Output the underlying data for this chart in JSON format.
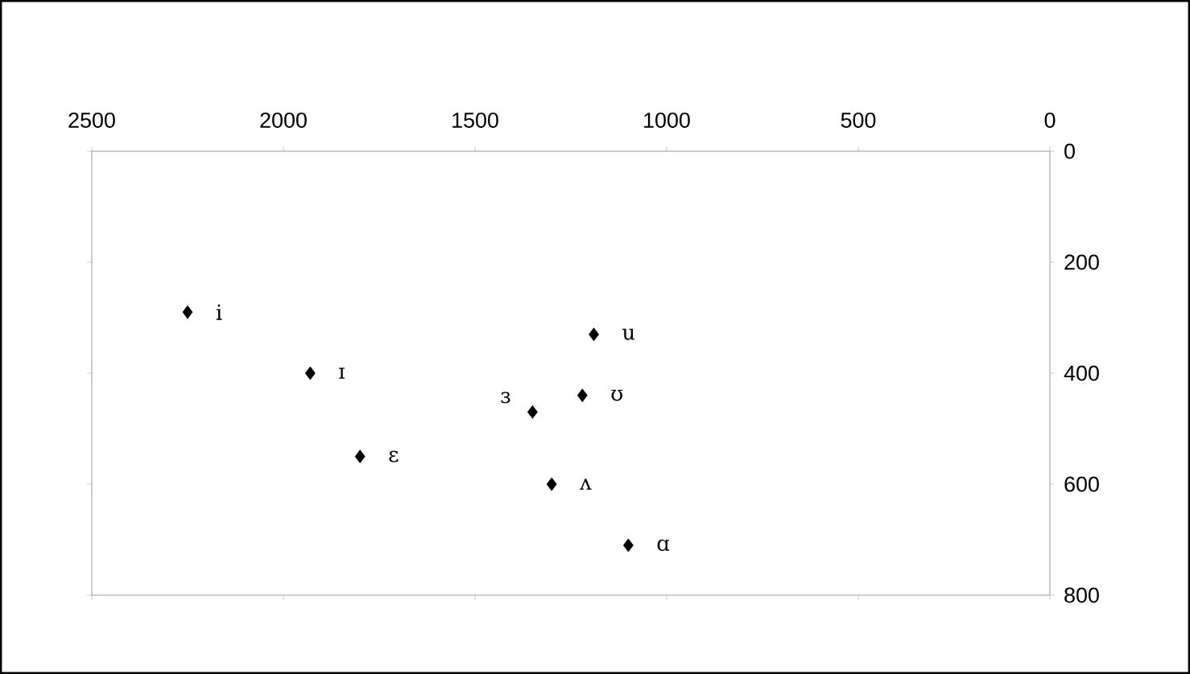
{
  "chart_data": {
    "type": "scatter",
    "x": [
      2250,
      1930,
      1800,
      1350,
      1220,
      1190,
      1300,
      1100
    ],
    "values": [
      290,
      400,
      550,
      470,
      440,
      330,
      600,
      710
    ],
    "color": "#000000",
    "marker": "diamond",
    "xlim": [
      2500,
      0
    ],
    "ylim": [
      800,
      0
    ],
    "xticks": [
      2500,
      2000,
      1500,
      1000,
      500,
      0
    ],
    "yticks": [
      0,
      200,
      400,
      600,
      800
    ],
    "annotations": [
      {
        "text": "i",
        "x": 2250,
        "y": 290
      },
      {
        "text": "ɪ",
        "x": 1930,
        "y": 400
      },
      {
        "text": "ɛ",
        "x": 1800,
        "y": 550
      },
      {
        "text": "ɜ",
        "x": 1350,
        "y": 470
      },
      {
        "text": "ʊ",
        "x": 1220,
        "y": 440
      },
      {
        "text": "u",
        "x": 1190,
        "y": 330
      },
      {
        "text": "ʌ",
        "x": 1300,
        "y": 600
      },
      {
        "text": "ɑ",
        "x": 1100,
        "y": 710
      }
    ]
  }
}
